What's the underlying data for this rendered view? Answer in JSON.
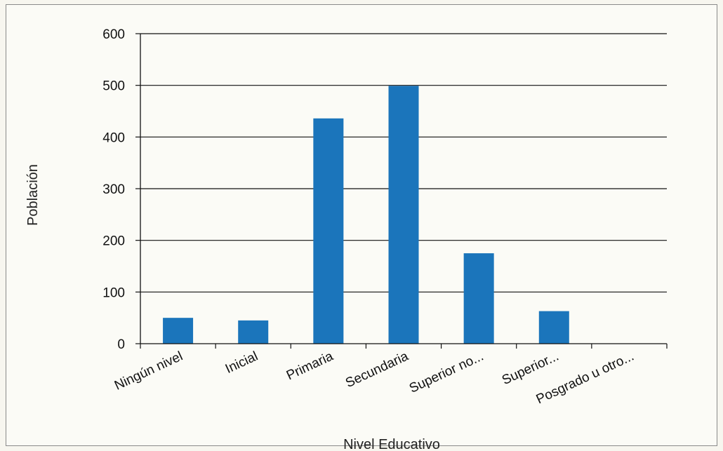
{
  "chart_data": {
    "type": "bar",
    "categories": [
      "Ningún nivel",
      "Inicial",
      "Primaria",
      "Secundaria",
      "Superior no...",
      "Superior...",
      "Posgrado u otro..."
    ],
    "values": [
      50,
      45,
      436,
      499,
      175,
      63,
      0
    ],
    "title": "",
    "xlabel": "Nivel Educativo",
    "ylabel": "Población",
    "ylim": [
      0,
      600
    ],
    "yticks": [
      0,
      100,
      200,
      300,
      400,
      500,
      600
    ],
    "grid": true,
    "legend": "none",
    "bar_color": "#1b75bb"
  }
}
